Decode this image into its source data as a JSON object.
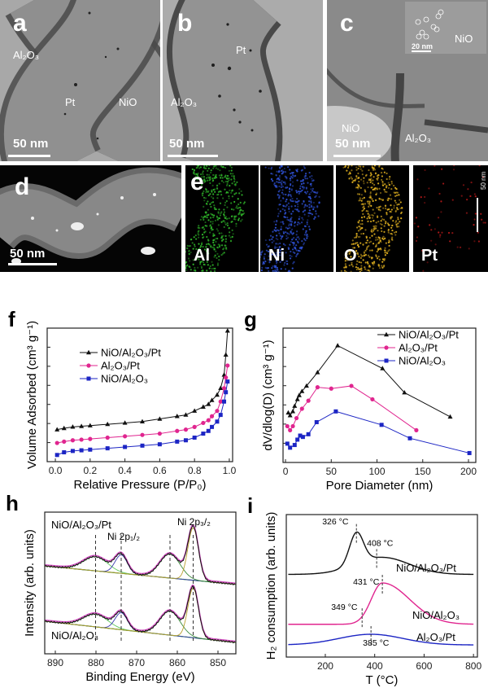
{
  "panels": {
    "a": {
      "label": "a",
      "annotations": [
        "Al₂O₃",
        "Pt",
        "NiO"
      ],
      "scale": "50 nm"
    },
    "b": {
      "label": "b",
      "annotations": [
        "Pt",
        "Al₂O₃"
      ],
      "scale": "50 nm"
    },
    "c": {
      "label": "c",
      "annotations": [
        "NiO",
        "Al₂O₃",
        "NiO"
      ],
      "scale": "50 nm",
      "inset_scale": "20 nm"
    },
    "d": {
      "label": "d",
      "scale": "50 nm"
    },
    "e": {
      "label": "e",
      "elements": [
        "Al",
        "Ni",
        "O",
        "Pt"
      ],
      "scale": "50 nm",
      "colors": [
        "#2fb52a",
        "#2f52d8",
        "#e0b020",
        "#b01818"
      ]
    }
  },
  "colors": {
    "black_series": "#111111",
    "pink_series": "#e0258f",
    "blue_series": "#1c25c4"
  },
  "chart_data": [
    {
      "id": "f",
      "label": "f",
      "type": "line",
      "xlabel": "Relative Pressure (P/P₀)",
      "ylabel": "Volume Adsorbed (cm³ g⁻¹)",
      "xlim": [
        -0.047,
        1.019
      ],
      "ylim": [
        0,
        100
      ],
      "xticks": [
        0.0,
        0.2,
        0.4,
        0.6,
        0.8,
        1.0
      ],
      "xtick_labels": [
        "0.0",
        "0.2",
        "0.4",
        "0.6",
        "0.8",
        "1.0"
      ],
      "legend": "top-left",
      "series": [
        {
          "name": "NiO/Al₂O₃/Pt",
          "marker": "triangle",
          "color": "#111111",
          "x": [
            0.01,
            0.05,
            0.1,
            0.15,
            0.2,
            0.3,
            0.4,
            0.5,
            0.6,
            0.7,
            0.75,
            0.8,
            0.85,
            0.88,
            0.9,
            0.93,
            0.95,
            0.97,
            0.98,
            0.99
          ],
          "y": [
            24,
            25,
            26,
            26.5,
            27,
            28,
            29,
            30,
            32,
            34,
            35,
            38,
            41,
            43,
            46,
            50,
            55,
            65,
            80,
            98
          ]
        },
        {
          "name": "Al₂O₃/Pt",
          "marker": "circle",
          "color": "#e0258f",
          "x": [
            0.01,
            0.05,
            0.1,
            0.15,
            0.2,
            0.3,
            0.4,
            0.5,
            0.6,
            0.7,
            0.75,
            0.8,
            0.85,
            0.88,
            0.9,
            0.93,
            0.95,
            0.97,
            0.98,
            0.99
          ],
          "y": [
            14,
            15,
            16,
            16.5,
            17,
            18,
            19,
            20,
            21,
            23,
            24,
            26,
            29,
            31,
            34,
            38,
            45,
            55,
            63,
            72
          ]
        },
        {
          "name": "NiO/Al₂O₃",
          "marker": "square",
          "color": "#1c25c4",
          "x": [
            0.01,
            0.05,
            0.1,
            0.15,
            0.2,
            0.3,
            0.4,
            0.5,
            0.6,
            0.7,
            0.75,
            0.8,
            0.85,
            0.88,
            0.9,
            0.93,
            0.95,
            0.97,
            0.98,
            0.99
          ],
          "y": [
            5,
            7,
            8,
            8.5,
            9,
            10,
            11,
            12,
            13,
            15,
            16,
            18,
            21,
            23,
            26,
            30,
            35,
            45,
            52,
            60
          ]
        }
      ]
    },
    {
      "id": "g",
      "label": "g",
      "type": "line",
      "xlabel": "Pore Diameter (nm)",
      "ylabel": "dV/dlog(D) (cm³ g⁻¹)",
      "xlim": [
        -2.7,
        208
      ],
      "ylim": [
        0,
        100
      ],
      "xticks": [
        0,
        50,
        100,
        150,
        200
      ],
      "xtick_labels": [
        "0",
        "50",
        "100",
        "150",
        "200"
      ],
      "legend": "top-right",
      "series": [
        {
          "name": "NiO/Al₂O₃/Pt",
          "marker": "triangle",
          "color": "#111111",
          "x": [
            3,
            5,
            8,
            10,
            13,
            15,
            18,
            23,
            35,
            57,
            106,
            130,
            180
          ],
          "y": [
            37,
            35,
            38,
            42,
            47,
            50,
            53,
            57,
            67,
            87,
            70,
            52,
            34
          ]
        },
        {
          "name": "Al₂O₃/Pt",
          "marker": "circle",
          "color": "#e0258f",
          "x": [
            2,
            5,
            8,
            12,
            18,
            25,
            35,
            50,
            72,
            95,
            143
          ],
          "y": [
            27,
            24,
            27,
            33,
            40,
            46,
            56,
            55,
            57,
            47,
            24
          ]
        },
        {
          "name": "NiO/Al₂O₃",
          "marker": "square",
          "color": "#1c25c4",
          "x": [
            2,
            5,
            10,
            13,
            16,
            19,
            25,
            34,
            55,
            105,
            136,
            201
          ],
          "y": [
            14,
            11,
            13,
            17,
            20,
            19,
            21,
            30,
            38,
            28,
            18,
            7
          ]
        }
      ]
    },
    {
      "id": "h",
      "label": "h",
      "type": "line",
      "xlabel": "Binding Energy (eV)",
      "ylabel": "Intensity (arb. units)",
      "xlim": [
        892.6,
        845.6
      ],
      "ylim": [
        0,
        100
      ],
      "xticks": [
        890,
        880,
        870,
        860,
        850
      ],
      "xtick_labels": [
        "890",
        "880",
        "870",
        "860",
        "850"
      ],
      "peak_positions_eV": [
        880.1,
        873.8,
        861.8,
        856.1
      ],
      "annotations": [
        "Ni 2p₁/₂",
        "Ni 2p₃/₂"
      ],
      "series": [
        {
          "name": "NiO/Al₂O₃/Pt",
          "baseline": [
            62,
            49
          ],
          "peaks": [
            {
              "center": 880.1,
              "height": 10,
              "width": 3.0
            },
            {
              "center": 873.8,
              "height": 13,
              "width": 1.5
            },
            {
              "center": 861.8,
              "height": 17,
              "width": 2.5
            },
            {
              "center": 856.1,
              "height": 37,
              "width": 1.3
            }
          ]
        },
        {
          "name": "NiO/Al₂O₃",
          "baseline": [
            23,
            8
          ],
          "peaks": [
            {
              "center": 880.1,
              "height": 9,
              "width": 3.0
            },
            {
              "center": 873.8,
              "height": 12,
              "width": 1.5
            },
            {
              "center": 861.8,
              "height": 17,
              "width": 2.5
            },
            {
              "center": 856.1,
              "height": 35,
              "width": 1.3
            }
          ]
        }
      ]
    },
    {
      "id": "i",
      "label": "i",
      "type": "line",
      "xlabel": "T (°C)",
      "ylabel": "H₂ consumption (arb. units)",
      "xlim": [
        42,
        816
      ],
      "ylim": [
        0,
        100
      ],
      "xticks": [
        200,
        400,
        600,
        800
      ],
      "xtick_labels": [
        "200",
        "400",
        "600",
        "800"
      ],
      "series": [
        {
          "name": "NiO/Al₂O₃/Pt",
          "color": "#111111",
          "baseline": 58,
          "peaks": [
            {
              "center": 326,
              "height": 22,
              "wl": 28,
              "wr": 28
            },
            {
              "center": 430,
              "height": 12,
              "wl": 110,
              "wr": 110
            }
          ],
          "markers": [
            {
              "T": 326,
              "label": "326 °C"
            },
            {
              "T": 408,
              "label": "408 °C"
            }
          ]
        },
        {
          "name": "NiO/Al₂O₃",
          "color": "#e0258f",
          "baseline": 23,
          "peaks": [
            {
              "center": 431,
              "height": 29,
              "wl": 45,
              "wr": 110
            }
          ],
          "markers": [
            {
              "T": 431,
              "label": "431 °C"
            },
            {
              "T": 349,
              "label": "349 °C"
            }
          ]
        },
        {
          "name": "Al₂O₃/Pt",
          "color": "#1c25c4",
          "baseline": 8.5,
          "peaks": [
            {
              "center": 385,
              "height": 7.5,
              "wl": 130,
              "wr": 130
            }
          ],
          "markers": [
            {
              "T": 385,
              "label": "385 °C"
            }
          ]
        }
      ]
    }
  ]
}
